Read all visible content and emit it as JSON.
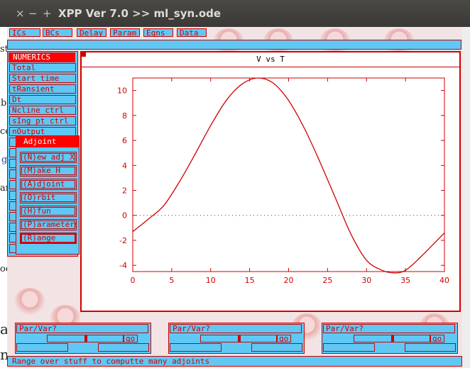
{
  "window": {
    "title": "XPP Ver 7.0 >> ml_syn.ode",
    "close_glyph": "×",
    "minimize_glyph": "−",
    "maximize_glyph": "+"
  },
  "menubar": [
    "ICs",
    "BCs",
    "Delay",
    "Param",
    "Eqns",
    "Data"
  ],
  "numerics": {
    "title": "NUMERICS",
    "items": [
      "Total",
      "Start time",
      "tRansient",
      "Dt",
      "Ncline ctrl",
      "sIng pt ctrl",
      "nOutput"
    ]
  },
  "adjoint": {
    "title": "Adjoint",
    "items": [
      "(N)ew adj X",
      "(M)ake H",
      "(A)djoint",
      "(O)rbit",
      "(H)fun",
      "(P)arameters",
      "(R)ange"
    ]
  },
  "graph": {
    "title": "V vs T"
  },
  "chart_data": {
    "type": "line",
    "title": "V vs T",
    "xlabel": "",
    "ylabel": "",
    "xlim": [
      0,
      40
    ],
    "ylim": [
      -4.5,
      11
    ],
    "xticks": [
      0,
      5,
      10,
      15,
      20,
      25,
      30,
      35,
      40
    ],
    "yticks": [
      -4,
      -2,
      0,
      2,
      4,
      6,
      8,
      10
    ],
    "series": [
      {
        "color": "#d10000",
        "x": [
          0,
          2,
          4,
          6,
          8,
          10,
          12,
          14,
          16,
          18,
          20,
          22,
          24,
          26,
          28,
          30,
          32,
          33.5,
          35,
          37,
          40
        ],
        "y": [
          -1.3,
          -0.3,
          0.8,
          2.7,
          4.9,
          7.2,
          9.2,
          10.5,
          11.0,
          10.6,
          9.2,
          7.0,
          4.3,
          1.4,
          -1.5,
          -3.6,
          -4.4,
          -4.6,
          -4.4,
          -3.3,
          -1.4
        ]
      }
    ],
    "zero_line": true
  },
  "sliders": [
    {
      "label": "Par/Var?",
      "go": "go"
    },
    {
      "label": "Par/Var?",
      "go": "go"
    },
    {
      "label": "Par/Var?",
      "go": "go"
    }
  ],
  "status": "Range over stuff to computte many adjoints",
  "background_fragments": {
    "st": "st",
    "b": "b",
    "ce": "ce",
    "g": "g",
    "am": "am",
    "oo": "oo",
    "a": "a",
    "n": "n"
  }
}
